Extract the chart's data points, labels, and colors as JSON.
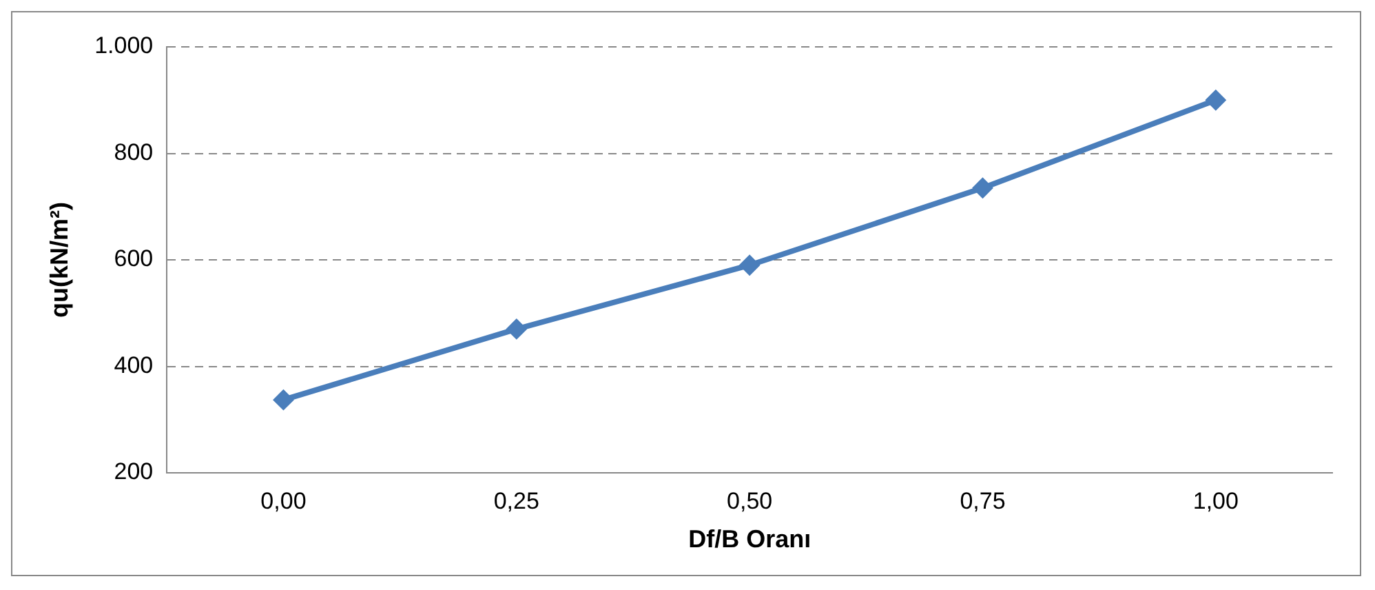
{
  "chart_data": {
    "type": "line",
    "xlabel": "Df/B Oranı",
    "ylabel": "qu(kN/m²)",
    "categories": [
      "0,00",
      "0,25",
      "0,50",
      "0,75",
      "1,00"
    ],
    "series": [
      {
        "color": "#4a7ebb",
        "values": [
          337,
          470,
          590,
          735,
          900
        ]
      }
    ],
    "ylim": [
      200,
      1000
    ],
    "yticks": [
      200,
      400,
      600,
      800,
      {
        "value": 1000,
        "label": "1.000"
      }
    ],
    "grid": "y",
    "legend": false,
    "marker": "diamond",
    "line_style": "solid"
  }
}
